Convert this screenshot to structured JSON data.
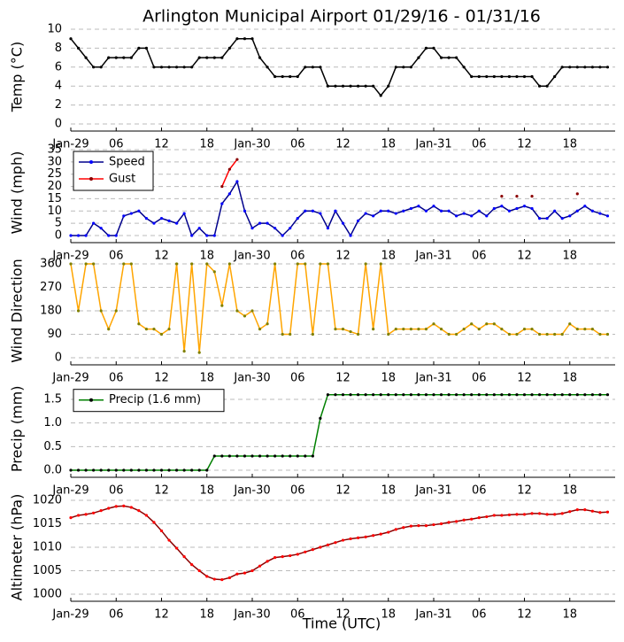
{
  "chart_data": {
    "type": "line",
    "title": "Arlington Municipal Airport 01/29/16 - 01/31/16",
    "xlabel": "Time (UTC)",
    "x": [
      0,
      1,
      2,
      3,
      4,
      5,
      6,
      7,
      8,
      9,
      10,
      11,
      12,
      13,
      14,
      15,
      16,
      17,
      18,
      19,
      20,
      21,
      22,
      23,
      24,
      25,
      26,
      27,
      28,
      29,
      30,
      31,
      32,
      33,
      34,
      35,
      36,
      37,
      38,
      39,
      40,
      41,
      42,
      43,
      44,
      45,
      46,
      47,
      48,
      49,
      50,
      51,
      52,
      53,
      54,
      55,
      56,
      57,
      58,
      59,
      60,
      61,
      62,
      63,
      64,
      65,
      66,
      67,
      68,
      69,
      70,
      71
    ],
    "xlim": [
      0,
      72
    ],
    "xticks": [
      {
        "value": 0,
        "label": "Jan-29"
      },
      {
        "value": 6,
        "label": "06"
      },
      {
        "value": 12,
        "label": "12"
      },
      {
        "value": 18,
        "label": "18"
      },
      {
        "value": 24,
        "label": "Jan-30"
      },
      {
        "value": 30,
        "label": "06"
      },
      {
        "value": 36,
        "label": "12"
      },
      {
        "value": 42,
        "label": "18"
      },
      {
        "value": 48,
        "label": "Jan-31"
      },
      {
        "value": 54,
        "label": "06"
      },
      {
        "value": 60,
        "label": "12"
      },
      {
        "value": 66,
        "label": "18"
      }
    ],
    "grid": true,
    "panels": [
      {
        "ylabel": "Temp (°C)",
        "ylim": [
          0,
          10
        ],
        "yticks": [
          0,
          2,
          4,
          6,
          8,
          10
        ],
        "series": [
          {
            "color": "#000000",
            "marker_color": "#000000",
            "values": [
              9,
              8,
              7,
              6,
              6,
              7,
              7,
              7,
              7,
              8,
              8,
              6,
              6,
              6,
              6,
              6,
              6,
              7,
              7,
              7,
              7,
              8,
              9,
              9,
              9,
              7,
              6,
              5,
              5,
              5,
              5,
              6,
              6,
              6,
              4,
              4,
              4,
              4,
              4,
              4,
              4,
              3,
              4,
              6,
              6,
              6,
              7,
              8,
              8,
              7,
              7,
              7,
              6,
              5,
              5,
              5,
              5,
              5,
              5,
              5,
              5,
              5,
              4,
              4,
              5,
              6,
              6,
              6,
              6,
              6,
              6,
              6
            ]
          }
        ]
      },
      {
        "ylabel": "Wind (mph)",
        "ylim": [
          0,
          35
        ],
        "yticks": [
          0,
          5,
          10,
          15,
          20,
          25,
          30,
          35
        ],
        "legend": "upper left",
        "series": [
          {
            "name": "Speed",
            "color": "#00008b",
            "marker_color": "#0000ff",
            "values": [
              0,
              0,
              0,
              5,
              3,
              0,
              0,
              8,
              9,
              10,
              7,
              5,
              7,
              6,
              5,
              9,
              0,
              3,
              0,
              0,
              13,
              17,
              22,
              10,
              3,
              5,
              5,
              3,
              0,
              3,
              7,
              10,
              10,
              9,
              3,
              10,
              5,
              0,
              6,
              9,
              8,
              10,
              10,
              9,
              10,
              11,
              12,
              10,
              12,
              10,
              10,
              8,
              9,
              8,
              10,
              8,
              11,
              12,
              10,
              11,
              12,
              11,
              7,
              7,
              10,
              7,
              8,
              10,
              12,
              10,
              9,
              8
            ]
          },
          {
            "name": "Gust",
            "color": "#ff0000",
            "marker_color": "#8b0000",
            "values": [
              null,
              null,
              null,
              null,
              null,
              null,
              null,
              null,
              null,
              null,
              null,
              null,
              null,
              null,
              null,
              null,
              null,
              null,
              null,
              null,
              20,
              27,
              31,
              null,
              null,
              null,
              null,
              null,
              null,
              null,
              null,
              null,
              null,
              null,
              null,
              null,
              null,
              null,
              null,
              null,
              null,
              null,
              null,
              null,
              null,
              null,
              null,
              null,
              null,
              null,
              null,
              null,
              null,
              null,
              null,
              null,
              null,
              16,
              null,
              16,
              null,
              16,
              null,
              null,
              null,
              null,
              null,
              17,
              null,
              null,
              null,
              null
            ]
          }
        ]
      },
      {
        "ylabel": "Wind Direction",
        "ylim": [
          0,
          360
        ],
        "yticks": [
          0,
          90,
          180,
          270,
          360
        ],
        "series": [
          {
            "color": "#ffa500",
            "marker_color": "#808000",
            "values": [
              360,
              180,
              360,
              360,
              180,
              110,
              180,
              360,
              360,
              130,
              110,
              110,
              90,
              110,
              360,
              25,
              360,
              20,
              360,
              330,
              200,
              360,
              180,
              160,
              180,
              110,
              130,
              360,
              90,
              90,
              360,
              360,
              90,
              360,
              360,
              110,
              110,
              100,
              90,
              360,
              110,
              360,
              90,
              110,
              110,
              110,
              110,
              110,
              130,
              110,
              90,
              90,
              110,
              130,
              110,
              130,
              130,
              110,
              90,
              90,
              110,
              110,
              90,
              90,
              90,
              90,
              130,
              110,
              110,
              110,
              90,
              90
            ]
          }
        ]
      },
      {
        "ylabel": "Precip (mm)",
        "ylim": [
          0,
          1.75
        ],
        "yticks": [
          {
            "value": 0,
            "label": "0.0"
          },
          {
            "value": 0.5,
            "label": "0.5"
          },
          {
            "value": 1,
            "label": "1.0"
          },
          {
            "value": 1.5,
            "label": "1.5"
          }
        ],
        "legend": "upper left",
        "series": [
          {
            "name": "Precip (1.6 mm)",
            "color": "#008000",
            "marker_color": "#000000",
            "values": [
              0,
              0,
              0,
              0,
              0,
              0,
              0,
              0,
              0,
              0,
              0,
              0,
              0,
              0,
              0,
              0,
              0,
              0,
              0,
              0.3,
              0.3,
              0.3,
              0.3,
              0.3,
              0.3,
              0.3,
              0.3,
              0.3,
              0.3,
              0.3,
              0.3,
              0.3,
              0.3,
              1.1,
              1.6,
              1.6,
              1.6,
              1.6,
              1.6,
              1.6,
              1.6,
              1.6,
              1.6,
              1.6,
              1.6,
              1.6,
              1.6,
              1.6,
              1.6,
              1.6,
              1.6,
              1.6,
              1.6,
              1.6,
              1.6,
              1.6,
              1.6,
              1.6,
              1.6,
              1.6,
              1.6,
              1.6,
              1.6,
              1.6,
              1.6,
              1.6,
              1.6,
              1.6,
              1.6,
              1.6,
              1.6,
              1.6
            ]
          }
        ]
      },
      {
        "ylabel": "Altimeter (hPa)",
        "ylim": [
          1000,
          1020
        ],
        "yticks": [
          1000,
          1005,
          1010,
          1015,
          1020
        ],
        "series": [
          {
            "color": "#8b0000",
            "marker_color": "#ff0000",
            "values": [
              1016.3,
              1016.8,
              1017,
              1017.3,
              1017.8,
              1018.3,
              1018.7,
              1018.8,
              1018.5,
              1017.8,
              1016.8,
              1015.3,
              1013.5,
              1011.5,
              1009.8,
              1008,
              1006.3,
              1005,
              1003.8,
              1003.2,
              1003.1,
              1003.5,
              1004.3,
              1004.5,
              1005,
              1006,
              1007,
              1007.8,
              1008,
              1008.2,
              1008.5,
              1009,
              1009.5,
              1010,
              1010.5,
              1011,
              1011.5,
              1011.8,
              1012,
              1012.2,
              1012.5,
              1012.8,
              1013.2,
              1013.8,
              1014.2,
              1014.5,
              1014.6,
              1014.6,
              1014.8,
              1015,
              1015.3,
              1015.5,
              1015.8,
              1016,
              1016.3,
              1016.5,
              1016.8,
              1016.8,
              1016.9,
              1017,
              1017,
              1017.2,
              1017.2,
              1017,
              1017,
              1017.2,
              1017.6,
              1018,
              1018,
              1017.7,
              1017.4,
              1017.5
            ]
          }
        ]
      }
    ]
  }
}
